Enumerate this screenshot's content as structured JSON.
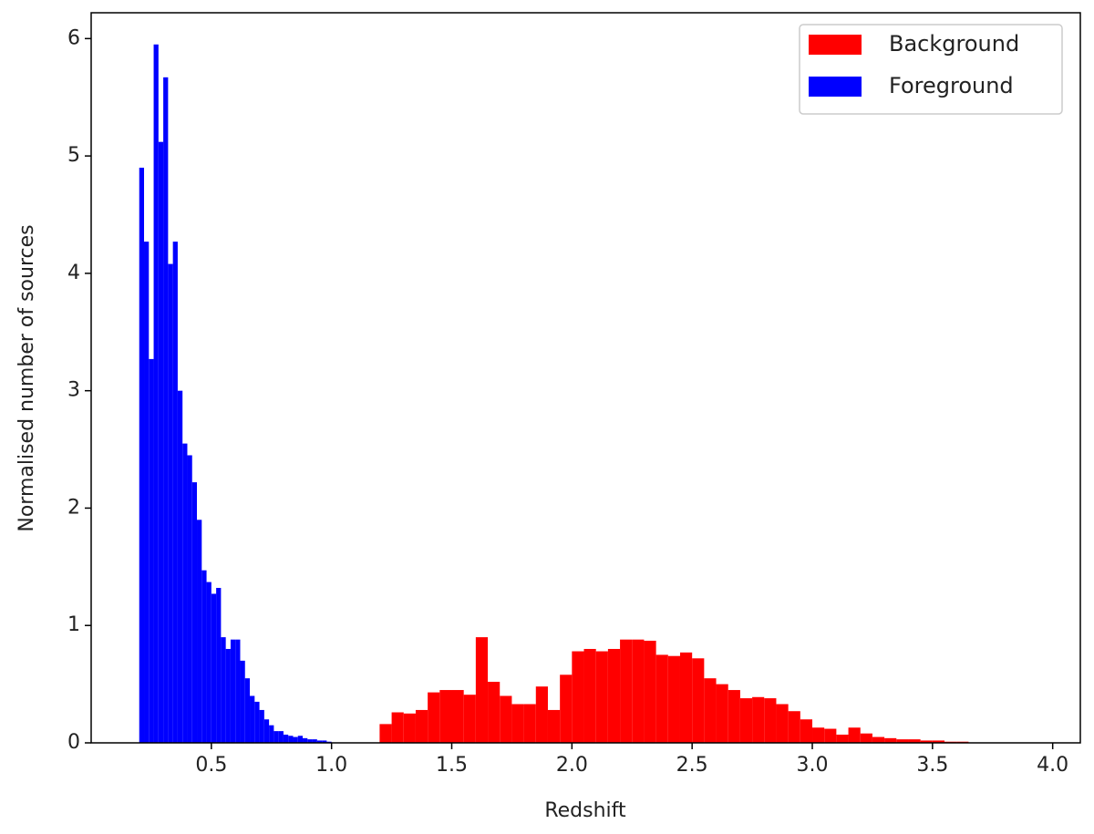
{
  "chart_data": {
    "type": "histogram",
    "xlabel": "Redshift",
    "ylabel": "Normalised number of sources",
    "xlim": [
      0.0,
      4.115
    ],
    "ylim": [
      0,
      6.22
    ],
    "xticks": [
      0.5,
      {
        "value": 1,
        "label": "1.0"
      },
      1.5,
      {
        "value": 2,
        "label": "2.0"
      },
      2.5,
      {
        "value": 3,
        "label": "3.0"
      },
      3.5,
      {
        "value": 4,
        "label": "4.0"
      }
    ],
    "yticks": [
      0,
      1,
      2,
      3,
      4,
      5,
      6
    ],
    "legend": "upper right",
    "series": [
      {
        "name": "Background",
        "color": "#ff0000",
        "bins": [
          1.2,
          1.25,
          1.3,
          1.35,
          1.4,
          1.45,
          1.5,
          1.55,
          1.6,
          1.65,
          1.7,
          1.75,
          1.8,
          1.85,
          1.9,
          1.95,
          2.0,
          2.05,
          2.1,
          2.15,
          2.2,
          2.25,
          2.3,
          2.35,
          2.4,
          2.45,
          2.5,
          2.55,
          2.6,
          2.65,
          2.7,
          2.75,
          2.8,
          2.85,
          2.9,
          2.95,
          3.0,
          3.05,
          3.1,
          3.15,
          3.2,
          3.25,
          3.3,
          3.35,
          3.4,
          3.45,
          3.5,
          3.55,
          3.6,
          3.65
        ],
        "values": [
          0.16,
          0.26,
          0.25,
          0.28,
          0.43,
          0.45,
          0.45,
          0.41,
          0.9,
          0.52,
          0.4,
          0.33,
          0.33,
          0.48,
          0.28,
          0.58,
          0.78,
          0.8,
          0.78,
          0.8,
          0.88,
          0.88,
          0.87,
          0.75,
          0.74,
          0.77,
          0.72,
          0.55,
          0.5,
          0.45,
          0.38,
          0.39,
          0.38,
          0.33,
          0.27,
          0.2,
          0.13,
          0.12,
          0.07,
          0.13,
          0.08,
          0.05,
          0.04,
          0.03,
          0.03,
          0.02,
          0.02,
          0.01,
          0.01
        ]
      },
      {
        "name": "Foreground",
        "color": "#0000ff",
        "bins": [
          0.2,
          0.22,
          0.24,
          0.26,
          0.28,
          0.3,
          0.32,
          0.34,
          0.36,
          0.38,
          0.4,
          0.42,
          0.44,
          0.46,
          0.48,
          0.5,
          0.52,
          0.54,
          0.56,
          0.58,
          0.6,
          0.62,
          0.64,
          0.66,
          0.68,
          0.7,
          0.72,
          0.74,
          0.76,
          0.78,
          0.8,
          0.82,
          0.84,
          0.86,
          0.88,
          0.9,
          0.92,
          0.94,
          0.96,
          0.98,
          1.0
        ],
        "values": [
          4.9,
          4.27,
          3.27,
          5.95,
          5.12,
          5.67,
          4.08,
          4.27,
          3.0,
          2.55,
          2.45,
          2.22,
          1.9,
          1.47,
          1.37,
          1.27,
          1.32,
          0.9,
          0.8,
          0.88,
          0.88,
          0.7,
          0.55,
          0.4,
          0.35,
          0.28,
          0.2,
          0.15,
          0.1,
          0.1,
          0.07,
          0.06,
          0.05,
          0.06,
          0.04,
          0.03,
          0.03,
          0.02,
          0.02,
          0.01
        ]
      }
    ]
  }
}
